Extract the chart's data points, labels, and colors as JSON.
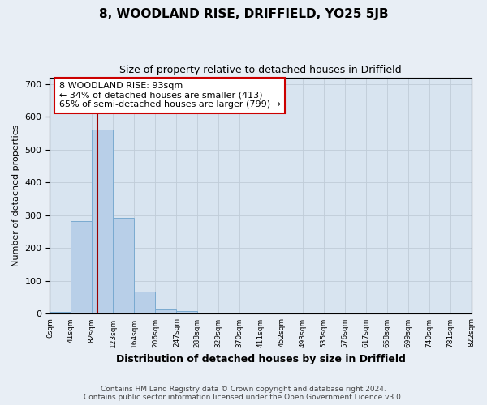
{
  "title": "8, WOODLAND RISE, DRIFFIELD, YO25 5JB",
  "subtitle": "Size of property relative to detached houses in Driffield",
  "xlabel": "Distribution of detached houses by size in Driffield",
  "ylabel": "Number of detached properties",
  "bin_edges": [
    0,
    41,
    82,
    123,
    164,
    206,
    247,
    288,
    329,
    370,
    411,
    452,
    493,
    535,
    576,
    617,
    658,
    699,
    740,
    781,
    822
  ],
  "bar_heights": [
    7,
    283,
    560,
    293,
    68,
    14,
    9,
    0,
    0,
    0,
    0,
    0,
    0,
    0,
    0,
    0,
    0,
    0,
    0,
    0
  ],
  "bar_color": "#b8cfe8",
  "bar_edge_color": "#7aaad0",
  "property_size": 93,
  "vline_color": "#990000",
  "annotation_text": "8 WOODLAND RISE: 93sqm\n← 34% of detached houses are smaller (413)\n65% of semi-detached houses are larger (799) →",
  "annotation_box_color": "white",
  "annotation_box_edge": "#cc0000",
  "ylim": [
    0,
    720
  ],
  "yticks": [
    0,
    100,
    200,
    300,
    400,
    500,
    600,
    700
  ],
  "footer_line1": "Contains HM Land Registry data © Crown copyright and database right 2024.",
  "footer_line2": "Contains public sector information licensed under the Open Government Licence v3.0.",
  "bg_color": "#e8eef5",
  "plot_bg_color": "#d8e4f0"
}
